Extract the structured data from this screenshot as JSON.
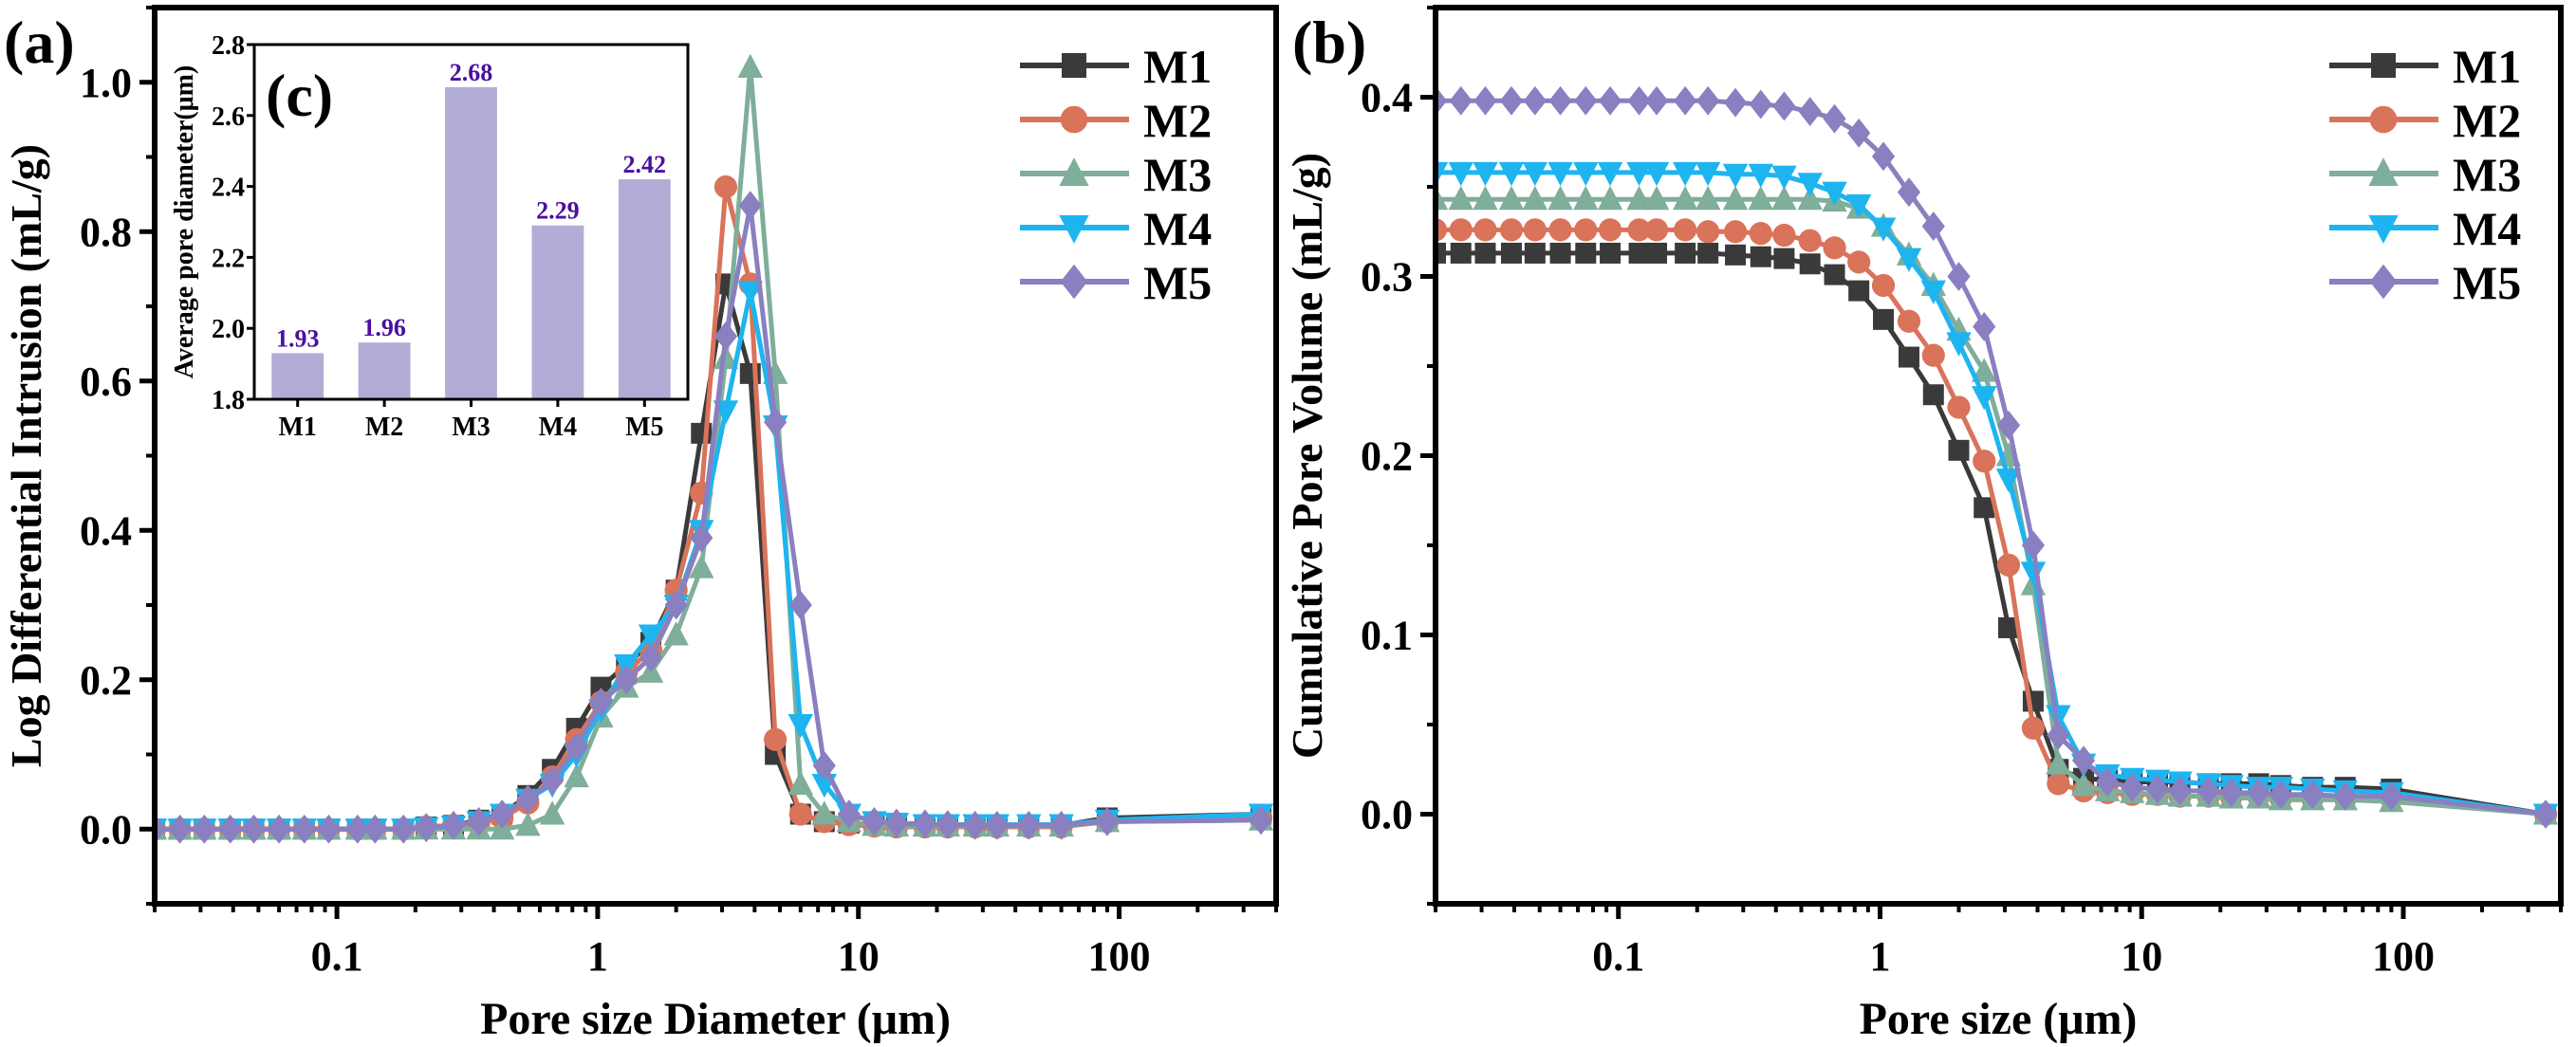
{
  "chart_data": [
    {
      "panel_label": "(a)",
      "type": "line",
      "xlabel": "Pore size Diameter (μm)",
      "ylabel": "Log Differential Intrusion (mL/g)",
      "xscale": "log",
      "xlim": [
        0.02,
        400
      ],
      "ylim": [
        -0.1,
        1.1
      ],
      "xticks": [
        "0.1",
        "1",
        "10",
        "100"
      ],
      "yticks": [
        "0.0",
        "0.2",
        "0.4",
        "0.6",
        "0.8",
        "1.0"
      ],
      "grid": false,
      "legend": "top-right",
      "x": [
        0.02,
        0.025,
        0.031,
        0.039,
        0.048,
        0.06,
        0.075,
        0.093,
        0.12,
        0.14,
        0.18,
        0.22,
        0.28,
        0.35,
        0.43,
        0.54,
        0.67,
        0.83,
        1.03,
        1.29,
        1.6,
        2.0,
        2.5,
        3.1,
        3.85,
        4.8,
        6.0,
        7.4,
        9.2,
        11.5,
        14,
        18,
        22,
        28,
        34,
        45,
        60,
        90,
        350
      ],
      "series": [
        {
          "name": "M1",
          "color": "#3a3a3a",
          "marker": "square",
          "values": [
            0,
            0,
            0,
            0,
            0,
            0,
            0,
            0,
            0,
            0,
            0,
            0.003,
            0.005,
            0.012,
            0.02,
            0.045,
            0.08,
            0.135,
            0.19,
            0.22,
            0.25,
            0.32,
            0.53,
            0.73,
            0.61,
            0.1,
            0.02,
            0.01,
            0.008,
            0.006,
            0.005,
            0.005,
            0.005,
            0.005,
            0.005,
            0.005,
            0.005,
            0.015,
            0.02
          ]
        },
        {
          "name": "M2",
          "color": "#d9735a",
          "marker": "circle",
          "values": [
            0,
            0,
            0,
            0,
            0,
            0,
            0,
            0,
            0,
            0,
            0,
            0.003,
            0.005,
            0.008,
            0.015,
            0.035,
            0.07,
            0.12,
            0.17,
            0.21,
            0.24,
            0.32,
            0.45,
            0.86,
            0.73,
            0.12,
            0.02,
            0.01,
            0.006,
            0.004,
            0.003,
            0.003,
            0.003,
            0.003,
            0.003,
            0.003,
            0.003,
            0.01,
            0.015
          ]
        },
        {
          "name": "M3",
          "color": "#7fae9a",
          "marker": "triangle-up",
          "values": [
            0,
            0,
            0,
            0,
            0,
            0,
            0,
            0,
            0,
            0,
            0,
            0,
            0,
            0,
            0,
            0.005,
            0.02,
            0.07,
            0.15,
            0.19,
            0.21,
            0.26,
            0.35,
            0.63,
            1.02,
            0.61,
            0.06,
            0.02,
            0.01,
            0.005,
            0.004,
            0.004,
            0.004,
            0.004,
            0.004,
            0.004,
            0.004,
            0.01,
            0.012
          ]
        },
        {
          "name": "M4",
          "color": "#1eb4f0",
          "marker": "triangle-down",
          "values": [
            0,
            0,
            0,
            0,
            0,
            0,
            0,
            0,
            0,
            0,
            0,
            0.002,
            0.004,
            0.01,
            0.02,
            0.04,
            0.06,
            0.1,
            0.16,
            0.22,
            0.26,
            0.3,
            0.4,
            0.56,
            0.72,
            0.54,
            0.14,
            0.06,
            0.02,
            0.01,
            0.008,
            0.006,
            0.006,
            0.006,
            0.006,
            0.006,
            0.006,
            0.012,
            0.02
          ]
        },
        {
          "name": "M5",
          "color": "#8a7fc0",
          "marker": "diamond",
          "values": [
            0,
            0,
            0,
            0,
            0,
            0,
            0,
            0,
            0,
            0,
            0,
            0.002,
            0.005,
            0.01,
            0.02,
            0.04,
            0.065,
            0.11,
            0.17,
            0.2,
            0.23,
            0.3,
            0.39,
            0.66,
            0.835,
            0.545,
            0.3,
            0.085,
            0.02,
            0.01,
            0.008,
            0.007,
            0.006,
            0.005,
            0.005,
            0.005,
            0.005,
            0.01,
            0.012
          ]
        }
      ]
    },
    {
      "panel_label": "(b)",
      "type": "line",
      "xlabel": "Pore size (μm)",
      "ylabel": "Cumulative Pore Volume (mL/g)",
      "xscale": "log",
      "xlim": [
        0.02,
        400
      ],
      "ylim": [
        -0.05,
        0.45
      ],
      "xticks": [
        "0.1",
        "1",
        "10",
        "100"
      ],
      "yticks": [
        "0.0",
        "0.1",
        "0.2",
        "0.3",
        "0.4"
      ],
      "grid": false,
      "legend": "top-right",
      "x": [
        0.02,
        0.025,
        0.031,
        0.039,
        0.048,
        0.06,
        0.075,
        0.093,
        0.12,
        0.14,
        0.18,
        0.22,
        0.28,
        0.35,
        0.43,
        0.54,
        0.67,
        0.83,
        1.03,
        1.29,
        1.6,
        2.0,
        2.5,
        3.1,
        3.85,
        4.8,
        6.0,
        7.4,
        9.2,
        11.5,
        14,
        18,
        22,
        28,
        34,
        45,
        60,
        90,
        350
      ],
      "series": [
        {
          "name": "M1",
          "color": "#3a3a3a",
          "marker": "square",
          "values": [
            0.313,
            0.313,
            0.313,
            0.313,
            0.313,
            0.313,
            0.313,
            0.313,
            0.313,
            0.313,
            0.313,
            0.313,
            0.312,
            0.311,
            0.31,
            0.307,
            0.301,
            0.292,
            0.276,
            0.255,
            0.234,
            0.203,
            0.171,
            0.104,
            0.063,
            0.025,
            0.02,
            0.019,
            0.018,
            0.018,
            0.018,
            0.017,
            0.017,
            0.017,
            0.016,
            0.015,
            0.015,
            0.014,
            0
          ]
        },
        {
          "name": "M2",
          "color": "#d9735a",
          "marker": "circle",
          "values": [
            0.326,
            0.326,
            0.326,
            0.326,
            0.326,
            0.326,
            0.326,
            0.326,
            0.326,
            0.326,
            0.326,
            0.325,
            0.325,
            0.324,
            0.323,
            0.32,
            0.316,
            0.308,
            0.295,
            0.275,
            0.256,
            0.227,
            0.197,
            0.139,
            0.048,
            0.017,
            0.013,
            0.012,
            0.011,
            0.011,
            0.01,
            0.01,
            0.01,
            0.01,
            0.009,
            0.009,
            0.009,
            0.009,
            0
          ]
        },
        {
          "name": "M3",
          "color": "#7fae9a",
          "marker": "triangle-up",
          "values": [
            0.343,
            0.343,
            0.343,
            0.343,
            0.343,
            0.343,
            0.343,
            0.343,
            0.343,
            0.343,
            0.343,
            0.343,
            0.343,
            0.343,
            0.343,
            0.343,
            0.342,
            0.338,
            0.328,
            0.312,
            0.295,
            0.27,
            0.247,
            0.2,
            0.128,
            0.028,
            0.016,
            0.013,
            0.012,
            0.011,
            0.01,
            0.01,
            0.009,
            0.009,
            0.008,
            0.008,
            0.008,
            0.007,
            0
          ]
        },
        {
          "name": "M4",
          "color": "#1eb4f0",
          "marker": "triangle-down",
          "values": [
            0.358,
            0.358,
            0.358,
            0.358,
            0.358,
            0.358,
            0.358,
            0.358,
            0.358,
            0.358,
            0.358,
            0.358,
            0.357,
            0.357,
            0.356,
            0.352,
            0.347,
            0.34,
            0.327,
            0.31,
            0.292,
            0.263,
            0.233,
            0.187,
            0.135,
            0.055,
            0.028,
            0.022,
            0.02,
            0.019,
            0.018,
            0.017,
            0.016,
            0.015,
            0.015,
            0.014,
            0.013,
            0.012,
            0
          ]
        },
        {
          "name": "M5",
          "color": "#8a7fc0",
          "marker": "diamond",
          "values": [
            0.398,
            0.398,
            0.398,
            0.398,
            0.398,
            0.398,
            0.398,
            0.398,
            0.398,
            0.398,
            0.398,
            0.398,
            0.397,
            0.396,
            0.395,
            0.392,
            0.388,
            0.38,
            0.367,
            0.347,
            0.328,
            0.3,
            0.272,
            0.217,
            0.15,
            0.044,
            0.03,
            0.018,
            0.015,
            0.014,
            0.013,
            0.013,
            0.012,
            0.012,
            0.011,
            0.011,
            0.01,
            0.01,
            0
          ]
        }
      ]
    },
    {
      "panel_label": "(c)",
      "type": "bar",
      "ylabel": "Average pore diameter(μm)",
      "categories": [
        "M1",
        "M2",
        "M3",
        "M4",
        "M5"
      ],
      "values": [
        1.93,
        1.96,
        2.68,
        2.29,
        2.42
      ],
      "data_labels": [
        "1.93",
        "1.96",
        "2.68",
        "2.29",
        "2.42"
      ],
      "ylim": [
        1.8,
        2.8
      ],
      "yticks": [
        "1.8",
        "2.0",
        "2.2",
        "2.4",
        "2.6",
        "2.8"
      ],
      "bar_color": "#b3acd6",
      "label_color": "#4b0fa0",
      "grid": false
    }
  ]
}
